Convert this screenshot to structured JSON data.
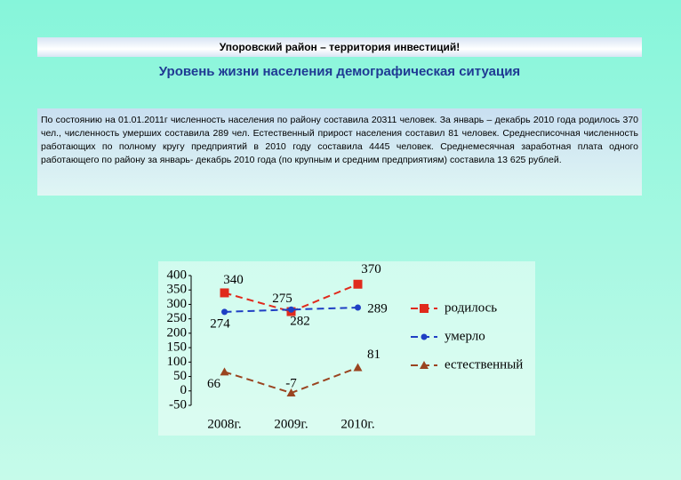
{
  "header": "Упоровский район – территория инвестиций!",
  "subtitle": "Уровень жизни населения демографическая ситуация",
  "paragraph": "По состоянию на 01.01.2011г численность населения по району составила 20311 человек. За январь – декабрь 2010 года родилось 370 чел., численность умерших составила 289 чел. Естественный прирост населения составил 81 человек. Среднесписочная численность работающих по полному кругу предприятий в 2010 году составила 4445 человек. Среднемесячная заработная плата одного работающего по району за январь- декабрь 2010 года (по крупным и средним предприятиям) составила 13 625 рублей.",
  "chart_data": {
    "type": "line",
    "categories": [
      "2008г.",
      "2009г.",
      "2010г."
    ],
    "series": [
      {
        "name": "родилось",
        "color": "#e02a1c",
        "marker": "square",
        "values": [
          340,
          275,
          370
        ]
      },
      {
        "name": "умерло",
        "color": "#1f3fc4",
        "marker": "circle",
        "values": [
          274,
          282,
          289
        ]
      },
      {
        "name": "естественный",
        "color": "#9a4420",
        "marker": "triangle",
        "values": [
          66,
          -7,
          81
        ]
      }
    ],
    "ylim": [
      -50,
      400
    ],
    "yticks": [
      -50,
      0,
      50,
      100,
      150,
      200,
      250,
      300,
      350,
      400
    ],
    "grid": false,
    "legend": "right"
  }
}
